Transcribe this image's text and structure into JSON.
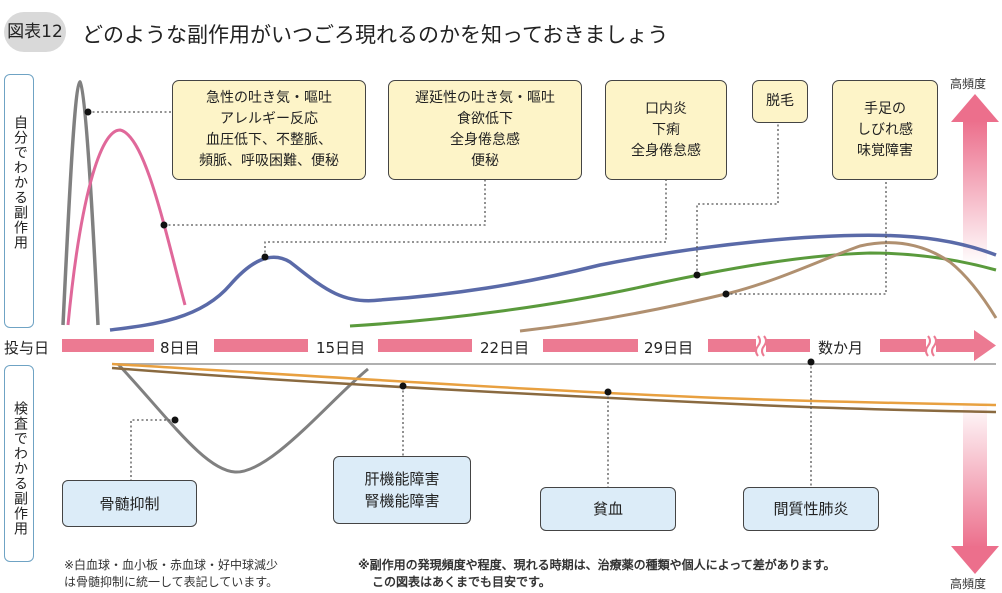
{
  "header": {
    "figure_number": "図表12",
    "title": "どのような副作用がいつごろ現れるのかを知っておきましょう"
  },
  "side_labels": {
    "subjective": "自分でわかる副作用",
    "lab": "検査でわかる副作用"
  },
  "timeline": {
    "labels": [
      "投与日",
      "8日目",
      "15日目",
      "22日目",
      "29日目",
      "数か月"
    ]
  },
  "subjective_effects": [
    {
      "text": "急性の吐き気・嘔吐\nアレルギー反応\n血圧低下、不整脈、\n頻脈、呼吸困難、便秘"
    },
    {
      "text": "遅延性の吐き気・嘔吐\n食欲低下\n全身倦怠感\n便秘"
    },
    {
      "text": "口内炎\n下痢\n全身倦怠感"
    },
    {
      "text": "脱毛"
    },
    {
      "text": "手足の\nしびれ感\n味覚障害"
    }
  ],
  "lab_effects": [
    {
      "text": "骨髄抑制"
    },
    {
      "text": "肝機能障害\n腎機能障害"
    },
    {
      "text": "貧血"
    },
    {
      "text": "間質性肺炎"
    }
  ],
  "frequency": {
    "top": "高頻度",
    "bottom": "高頻度"
  },
  "notes": {
    "left": "※白血球・血小板・赤血球・好中球減少\nは骨髄抑制に統一して表記しています。",
    "right_line1": "※副作用の発現頻度や程度、現れる時期は、治療薬の種類や個人によって差があります。",
    "right_line2": "この図表はあくまでも目安です。"
  },
  "colors": {
    "accent_pink": "#ec7a92",
    "gray_curve": "#808080",
    "magenta_curve": "#e0689a",
    "blue_curve": "#5a6aa8",
    "green_curve": "#5a9a3c",
    "tan_curve": "#b09070",
    "orange_curve": "#e8a040",
    "brown_curve": "#8a6a40",
    "callout_fill": "#fdf4c8",
    "lab_fill": "#dcecf8"
  }
}
